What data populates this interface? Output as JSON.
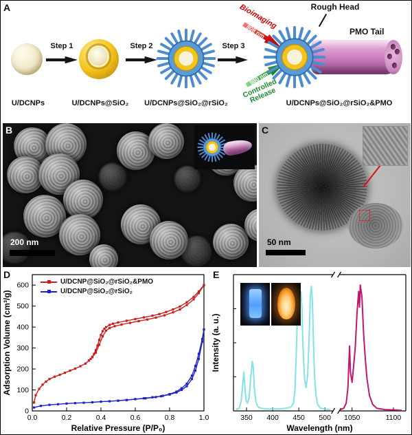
{
  "figure": {
    "panels": {
      "a": {
        "label": "A",
        "steps": [
          "Step 1",
          "Step 2",
          "Step 3"
        ],
        "captions": [
          "U/DCNPs",
          "U/DCNPs@SiO₂",
          "U/DCNPs@SiO₂@rSiO₂",
          "U/DCNPs@SiO₂@rSiO₂&PMO"
        ],
        "rough_head": "Rough Head",
        "pmo_tail": "PMO Tail",
        "bioimaging": "Bioimaging",
        "nm_808": "808 nm",
        "nm_980": "980 nm",
        "controlled_release": "Controlled Release"
      },
      "b": {
        "label": "B",
        "scale_bar": "200 nm"
      },
      "c": {
        "label": "C",
        "scale_bar": "50 nm"
      },
      "d": {
        "label": "D"
      },
      "e": {
        "label": "E"
      }
    }
  },
  "chart_data": [
    {
      "id": "isotherm",
      "type": "line",
      "panel": "D",
      "title": "",
      "xlabel": "Relative Pressure (P/P₀)",
      "ylabel": "Adsorption Volume (cm³/g)",
      "xlim": [
        0,
        1.0
      ],
      "ylim": [
        0,
        650
      ],
      "xticks": [
        0.0,
        0.2,
        0.4,
        0.6,
        0.8,
        1.0
      ],
      "yticks": [
        0,
        100,
        200,
        300,
        400,
        500,
        600
      ],
      "grid": false,
      "legend_position": "top-left",
      "series": [
        {
          "name": "U/DCNP@SiO₂@rSiO₂&PMO",
          "color": "#c81e1e",
          "adsorption": [
            [
              0.01,
              40
            ],
            [
              0.02,
              75
            ],
            [
              0.04,
              105
            ],
            [
              0.06,
              125
            ],
            [
              0.08,
              140
            ],
            [
              0.1,
              152
            ],
            [
              0.13,
              163
            ],
            [
              0.16,
              172
            ],
            [
              0.19,
              182
            ],
            [
              0.22,
              192
            ],
            [
              0.25,
              202
            ],
            [
              0.28,
              213
            ],
            [
              0.31,
              226
            ],
            [
              0.33,
              240
            ],
            [
              0.35,
              256
            ],
            [
              0.37,
              278
            ],
            [
              0.39,
              315
            ],
            [
              0.41,
              356
            ],
            [
              0.43,
              383
            ],
            [
              0.45,
              395
            ],
            [
              0.48,
              404
            ],
            [
              0.52,
              412
            ],
            [
              0.57,
              420
            ],
            [
              0.62,
              428
            ],
            [
              0.67,
              436
            ],
            [
              0.72,
              445
            ],
            [
              0.77,
              456
            ],
            [
              0.82,
              470
            ],
            [
              0.86,
              484
            ],
            [
              0.9,
              505
            ],
            [
              0.94,
              532
            ],
            [
              0.97,
              562
            ],
            [
              1.0,
              600
            ]
          ],
          "desorption": [
            [
              1.0,
              600
            ],
            [
              0.97,
              570
            ],
            [
              0.94,
              544
            ],
            [
              0.9,
              518
            ],
            [
              0.86,
              498
            ],
            [
              0.82,
              484
            ],
            [
              0.78,
              472
            ],
            [
              0.74,
              462
            ],
            [
              0.7,
              454
            ],
            [
              0.65,
              446
            ],
            [
              0.6,
              438
            ],
            [
              0.55,
              430
            ],
            [
              0.5,
              422
            ],
            [
              0.47,
              416
            ],
            [
              0.45,
              410
            ],
            [
              0.43,
              400
            ],
            [
              0.42,
              392
            ],
            [
              0.41,
              380
            ],
            [
              0.4,
              362
            ],
            [
              0.39,
              338
            ],
            [
              0.38,
              312
            ],
            [
              0.37,
              290
            ],
            [
              0.36,
              272
            ],
            [
              0.35,
              258
            ],
            [
              0.34,
              248
            ],
            [
              0.33,
              241
            ]
          ]
        },
        {
          "name": "U/DCNP@SiO₂@rSiO₂",
          "color": "#2020c8",
          "adsorption": [
            [
              0.01,
              16
            ],
            [
              0.05,
              24
            ],
            [
              0.1,
              29
            ],
            [
              0.15,
              32
            ],
            [
              0.2,
              35
            ],
            [
              0.25,
              37
            ],
            [
              0.3,
              39
            ],
            [
              0.35,
              41
            ],
            [
              0.4,
              44
            ],
            [
              0.45,
              46
            ],
            [
              0.5,
              49
            ],
            [
              0.55,
              52
            ],
            [
              0.6,
              56
            ],
            [
              0.65,
              60
            ],
            [
              0.7,
              65
            ],
            [
              0.75,
              70
            ],
            [
              0.8,
              78
            ],
            [
              0.84,
              88
            ],
            [
              0.87,
              100
            ],
            [
              0.9,
              118
            ],
            [
              0.93,
              152
            ],
            [
              0.95,
              192
            ],
            [
              0.97,
              248
            ],
            [
              0.99,
              330
            ],
            [
              1.0,
              388
            ]
          ],
          "desorption": [
            [
              1.0,
              388
            ],
            [
              0.99,
              342
            ],
            [
              0.97,
              272
            ],
            [
              0.95,
              214
            ],
            [
              0.93,
              168
            ],
            [
              0.9,
              130
            ],
            [
              0.87,
              108
            ],
            [
              0.84,
              92
            ],
            [
              0.8,
              80
            ],
            [
              0.76,
              72
            ],
            [
              0.72,
              66
            ],
            [
              0.66,
              60
            ],
            [
              0.6,
              56
            ],
            [
              0.55,
              52
            ],
            [
              0.5,
              49
            ]
          ]
        }
      ]
    },
    {
      "id": "emission",
      "type": "line",
      "panel": "E",
      "title": "",
      "xlabel": "Wavelength (nm)",
      "ylabel": "Intensity (a. u.)",
      "ylim": [
        0,
        1.05
      ],
      "axis_break": true,
      "grid": false,
      "segments": [
        {
          "xlim": [
            325,
            515
          ],
          "xticks": [
            350,
            400,
            450,
            500
          ],
          "frac": 0.6
        },
        {
          "xlim": [
            1035,
            1115
          ],
          "xticks": [
            1050,
            1100
          ],
          "frac": 0.4
        }
      ],
      "series": [
        {
          "name": "visible_upconversion_emission",
          "color": "#82e2e4",
          "segment": 0,
          "points": [
            [
              330,
              0.01
            ],
            [
              336,
              0.02
            ],
            [
              340,
              0.08
            ],
            [
              343,
              0.22
            ],
            [
              345,
              0.3
            ],
            [
              347,
              0.18
            ],
            [
              349,
              0.08
            ],
            [
              352,
              0.06
            ],
            [
              355,
              0.1
            ],
            [
              358,
              0.25
            ],
            [
              361,
              0.38
            ],
            [
              363,
              0.33
            ],
            [
              365,
              0.18
            ],
            [
              368,
              0.07
            ],
            [
              372,
              0.03
            ],
            [
              378,
              0.02
            ],
            [
              390,
              0.015
            ],
            [
              410,
              0.015
            ],
            [
              425,
              0.02
            ],
            [
              435,
              0.03
            ],
            [
              440,
              0.06
            ],
            [
              443,
              0.18
            ],
            [
              446,
              0.55
            ],
            [
              448,
              0.88
            ],
            [
              450,
              0.97
            ],
            [
              452,
              0.83
            ],
            [
              454,
              0.92
            ],
            [
              456,
              0.8
            ],
            [
              458,
              0.5
            ],
            [
              461,
              0.25
            ],
            [
              464,
              0.18
            ],
            [
              467,
              0.28
            ],
            [
              470,
              0.6
            ],
            [
              472,
              0.88
            ],
            [
              474,
              0.96
            ],
            [
              476,
              0.85
            ],
            [
              478,
              0.55
            ],
            [
              480,
              0.28
            ],
            [
              483,
              0.12
            ],
            [
              486,
              0.05
            ],
            [
              492,
              0.02
            ],
            [
              500,
              0.015
            ],
            [
              510,
              0.01
            ]
          ]
        },
        {
          "name": "nir_downconversion_emission",
          "color": "#c4156e",
          "segment": 1,
          "points": [
            [
              1036,
              0.01
            ],
            [
              1040,
              0.02
            ],
            [
              1043,
              0.06
            ],
            [
              1045,
              0.18
            ],
            [
              1047,
              0.5
            ],
            [
              1048,
              0.3
            ],
            [
              1050,
              0.22
            ],
            [
              1052,
              0.35
            ],
            [
              1054,
              0.5
            ],
            [
              1056,
              0.75
            ],
            [
              1058,
              0.92
            ],
            [
              1059,
              0.8
            ],
            [
              1060,
              0.97
            ],
            [
              1062,
              0.88
            ],
            [
              1064,
              0.6
            ],
            [
              1066,
              0.4
            ],
            [
              1068,
              0.25
            ],
            [
              1071,
              0.12
            ],
            [
              1075,
              0.05
            ],
            [
              1080,
              0.02
            ],
            [
              1090,
              0.01
            ],
            [
              1100,
              0.008
            ],
            [
              1110,
              0.005
            ]
          ]
        }
      ]
    }
  ]
}
